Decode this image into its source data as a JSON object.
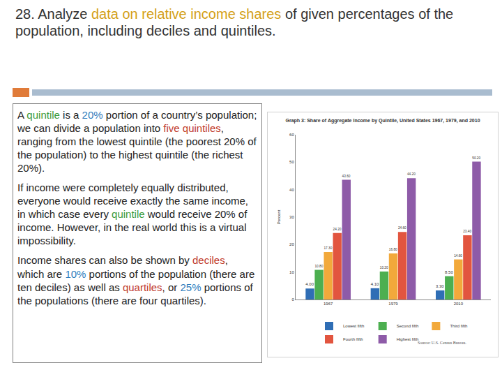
{
  "slide": {
    "title": [
      {
        "text": "28. Analyze "
      },
      {
        "text": "data on relative income shares ",
        "color": "#d4a017"
      },
      {
        "text": "of given percentages of the population, including deciles and quintiles."
      }
    ],
    "paragraphs": [
      [
        {
          "text": "A "
        },
        {
          "text": "quintile",
          "color": "#3a9a3a"
        },
        {
          "text": " is a "
        },
        {
          "text": "20%",
          "color": "#2e7dbd"
        },
        {
          "text": " portion of a country’s population; we can divide a population into "
        },
        {
          "text": "five quintiles",
          "color": "#c0392b"
        },
        {
          "text": ", ranging from the lowest quintile (the poorest 20% of the population) to the highest quintile (the richest 20%)."
        }
      ],
      [
        {
          "text": "If income were completely equally distributed, everyone would receive exactly the same income, in which case every "
        },
        {
          "text": "quintile",
          "color": "#3a9a3a"
        },
        {
          "text": " would receive 20% of income. However, in the real world this is a virtual impossibility."
        }
      ],
      [
        {
          "text": "Income shares can also be shown by "
        },
        {
          "text": "deciles",
          "color": "#c0392b"
        },
        {
          "text": ", which are "
        },
        {
          "text": "10%",
          "color": "#2e7dbd"
        },
        {
          "text": " portions of the population (there are ten deciles) as well as "
        },
        {
          "text": "quartiles",
          "color": "#c0392b"
        },
        {
          "text": ", or "
        },
        {
          "text": "25%",
          "color": "#2e7dbd"
        },
        {
          "text": " portions of the populations (there are four quartiles)."
        }
      ]
    ]
  },
  "chart_data": {
    "type": "bar",
    "title": "Graph 3: Share of Aggregate Income by Quintile, United States 1967, 1979, and 2010",
    "y_label": "Percent",
    "source": "Source: U.S. Census Bureau.",
    "categories": [
      "1967",
      "1979",
      "2010"
    ],
    "series": [
      {
        "name": "Lowest fifth",
        "color": "#2f6eb5",
        "values": [
          4.0,
          4.1,
          3.3
        ],
        "value_labels": [
          "4.00",
          "4.10",
          "3.30"
        ]
      },
      {
        "name": "Second fifth",
        "color": "#4caf50",
        "values": [
          10.8,
          10.2,
          8.5
        ],
        "value_labels": [
          "10.80",
          "10.20",
          "8.50"
        ]
      },
      {
        "name": "Third fifth",
        "color": "#f2a93b",
        "values": [
          17.3,
          16.8,
          14.6
        ],
        "value_labels": [
          "17.30",
          "16.80",
          "14.60"
        ]
      },
      {
        "name": "Fourth fifth",
        "color": "#e2553f",
        "values": [
          24.2,
          24.6,
          23.4
        ],
        "value_labels": [
          "24.20",
          "24.60",
          "23.40"
        ]
      },
      {
        "name": "Highest fifth",
        "color": "#8e5ba8",
        "values": [
          43.6,
          44.2,
          50.2
        ],
        "value_labels": [
          "43.60",
          "44.20",
          "50.20"
        ]
      }
    ],
    "ylim": [
      0,
      60
    ],
    "yticks": [
      0,
      10,
      20,
      30,
      40,
      50,
      60
    ],
    "grid": false,
    "legend": "bottom",
    "data_labels": true
  }
}
